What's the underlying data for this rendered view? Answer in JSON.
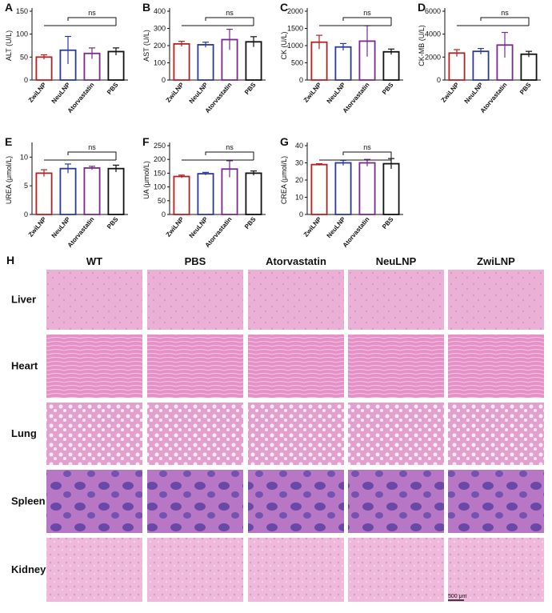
{
  "chart_data": [
    {
      "type": "bar",
      "panel": "A",
      "ylabel": "ALT (U/L)",
      "categories": [
        "ZwiLNP",
        "NeuLNP",
        "Atorvastatin",
        "PBS"
      ],
      "values": [
        50,
        65,
        58,
        62
      ],
      "errors": [
        5,
        30,
        12,
        8
      ],
      "colors": [
        "#b22222",
        "#2b3a9a",
        "#7a2a8c",
        "#111111"
      ],
      "ylim": [
        0,
        150
      ],
      "yticks": [
        0,
        50,
        100,
        150
      ],
      "annotation": "ns"
    },
    {
      "type": "bar",
      "panel": "B",
      "ylabel": "AST (U/L)",
      "categories": [
        "ZwiLNP",
        "NeuLNP",
        "Atorvastatin",
        "PBS"
      ],
      "values": [
        210,
        205,
        235,
        222
      ],
      "errors": [
        15,
        15,
        60,
        30
      ],
      "colors": [
        "#b22222",
        "#2b3a9a",
        "#7a2a8c",
        "#111111"
      ],
      "ylim": [
        0,
        400
      ],
      "yticks": [
        0,
        100,
        200,
        300,
        400
      ],
      "annotation": "ns"
    },
    {
      "type": "bar",
      "panel": "C",
      "ylabel": "CK (U/L)",
      "categories": [
        "ZwiLNP",
        "NeuLNP",
        "Atorvastatin",
        "PBS"
      ],
      "values": [
        1100,
        960,
        1130,
        820
      ],
      "errors": [
        200,
        100,
        450,
        80
      ],
      "colors": [
        "#b22222",
        "#2b3a9a",
        "#7a2a8c",
        "#111111"
      ],
      "ylim": [
        0,
        2000
      ],
      "yticks": [
        0,
        500,
        1000,
        1500,
        2000
      ],
      "annotation": "ns"
    },
    {
      "type": "bar",
      "panel": "D",
      "ylabel": "CK-MB (U/L)",
      "categories": [
        "ZwiLNP",
        "NeuLNP",
        "Atorvastatin",
        "PBS"
      ],
      "values": [
        2350,
        2500,
        3050,
        2250
      ],
      "errors": [
        300,
        250,
        1100,
        250
      ],
      "colors": [
        "#b22222",
        "#2b3a9a",
        "#7a2a8c",
        "#111111"
      ],
      "ylim": [
        0,
        6000
      ],
      "yticks": [
        0,
        2000,
        4000,
        6000
      ],
      "annotation": "ns"
    },
    {
      "type": "bar",
      "panel": "E",
      "ylabel": "UREA (μmol/L)",
      "categories": [
        "ZwiLNP",
        "NeuLNP",
        "Atorvastatin",
        "PBS"
      ],
      "values": [
        7.2,
        8.0,
        8.1,
        8.0
      ],
      "errors": [
        0.6,
        0.8,
        0.3,
        0.6
      ],
      "colors": [
        "#b22222",
        "#2b3a9a",
        "#7a2a8c",
        "#111111"
      ],
      "ylim": [
        0,
        12
      ],
      "yticks": [
        0,
        5,
        10
      ],
      "annotation": "ns"
    },
    {
      "type": "bar",
      "panel": "F",
      "ylabel": "UA (μmol/L)",
      "categories": [
        "ZwiLNP",
        "NeuLNP",
        "Atorvastatin",
        "PBS"
      ],
      "values": [
        138,
        148,
        165,
        150
      ],
      "errors": [
        5,
        5,
        30,
        8
      ],
      "colors": [
        "#b22222",
        "#2b3a9a",
        "#7a2a8c",
        "#111111"
      ],
      "ylim": [
        0,
        250
      ],
      "yticks": [
        0,
        50,
        100,
        150,
        200,
        250
      ],
      "annotation": "ns"
    },
    {
      "type": "bar",
      "panel": "G",
      "ylabel": "CREA (μmol/L)",
      "categories": [
        "ZwiLNP",
        "NeuLNP",
        "Atorvastatin",
        "PBS"
      ],
      "values": [
        29,
        30,
        30,
        29.5
      ],
      "errors": [
        0.5,
        1.5,
        2,
        3
      ],
      "colors": [
        "#b22222",
        "#2b3a9a",
        "#7a2a8c",
        "#111111"
      ],
      "ylim": [
        0,
        40
      ],
      "yticks": [
        0,
        10,
        20,
        30,
        40
      ],
      "annotation": "ns"
    }
  ],
  "histology": {
    "panel": "H",
    "columns": [
      "WT",
      "PBS",
      "Atorvastatin",
      "NeuLNP",
      "ZwiLNP"
    ],
    "rows": [
      "Liver",
      "Heart",
      "Lung",
      "Spleen",
      "Kidney"
    ],
    "scale_bar": "500 μm"
  }
}
